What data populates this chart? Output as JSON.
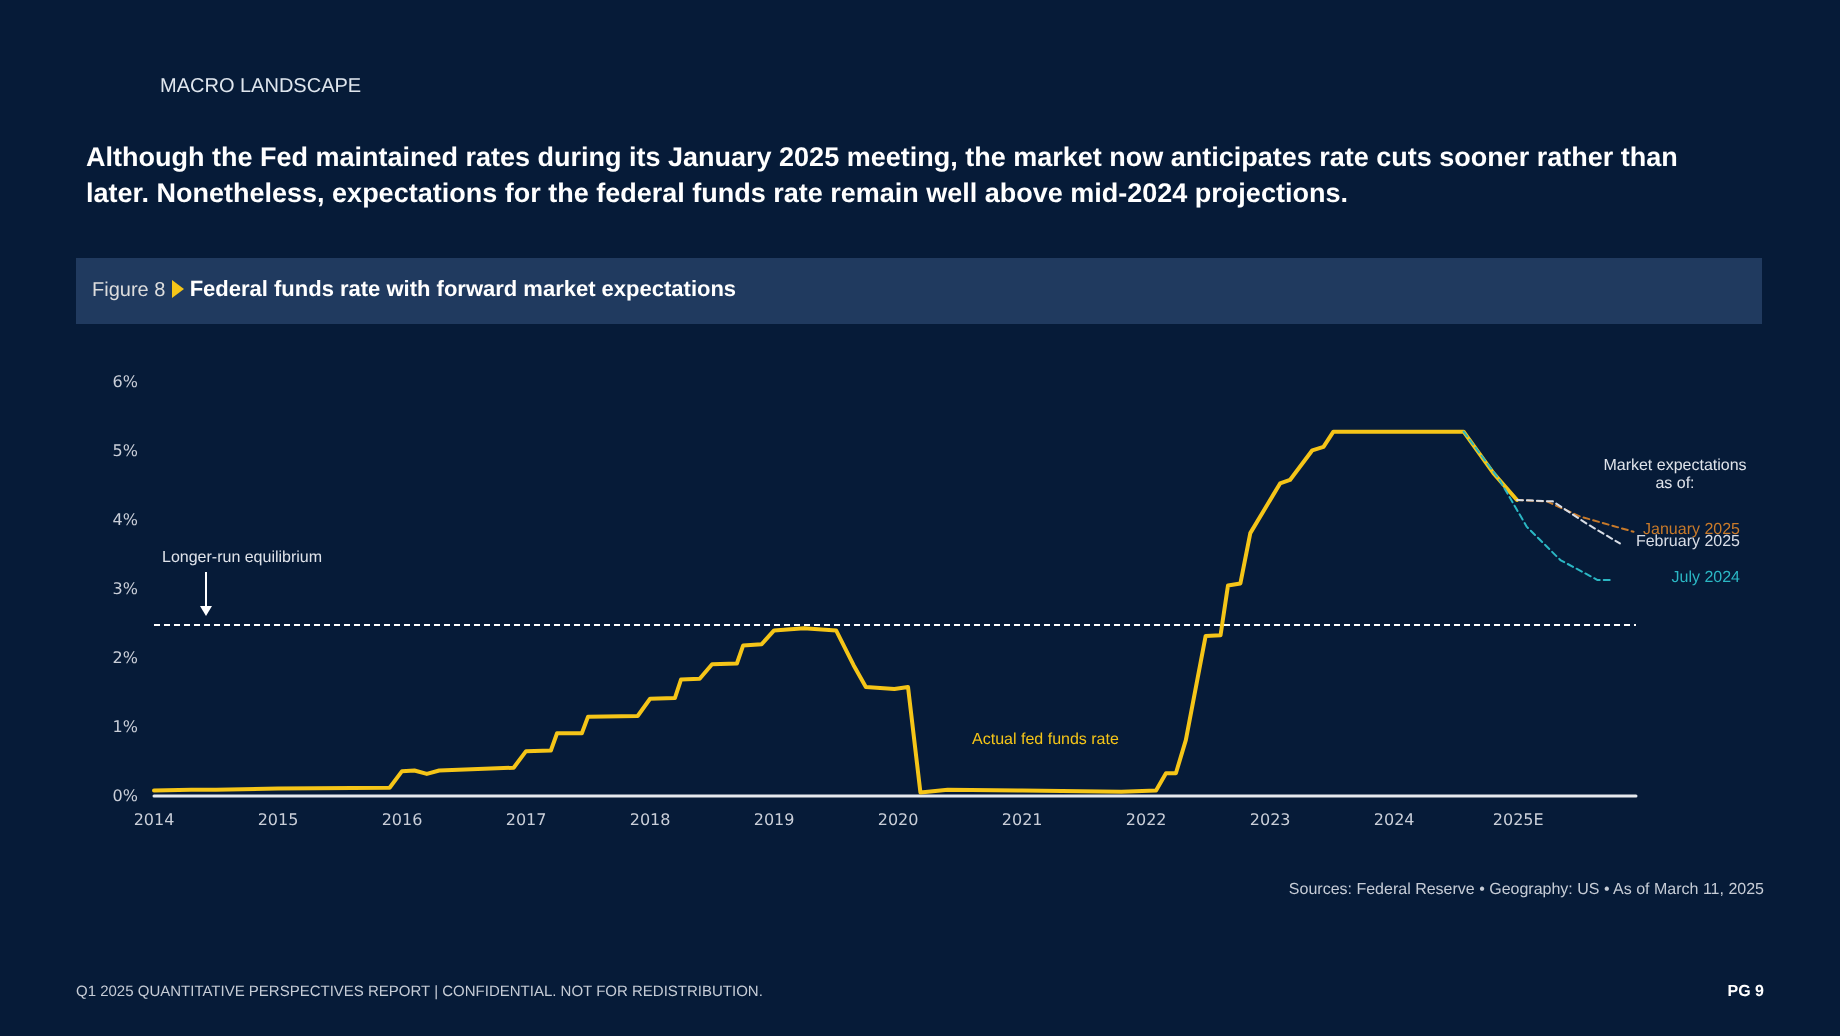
{
  "chart_data": {
    "type": "line",
    "title": "Although the Fed maintained rates during its January 2025 meeting, the market now anticipates rate cuts sooner rather than later. Nonetheless, expectations for the federal funds rate remain well above mid-2024 projections.",
    "subtitle": "Federal funds rate with forward market expectations",
    "legend_title": "Market expectations as of:",
    "annotations": [
      "MACRO LANDSCAPE",
      "Figure 8",
      "Sources: Federal Reserve • Geography: US • As of March 11, 2025",
      "Q1 2025 QUANTITATIVE PERSPECTIVES REPORT | CONFIDENTIAL. NOT FOR REDISTRIBUTION.",
      "PG 9"
    ],
    "xlim": [
      2014,
      2025.95
    ],
    "xticks": [
      2014,
      2015,
      2016,
      2017,
      2018,
      2019,
      2020,
      2021,
      2022,
      2023,
      2024,
      {
        "value": 2025,
        "label": "2025E"
      }
    ],
    "ylim": [
      0,
      6
    ],
    "yticks": [
      {
        "value": 0,
        "label": "0%"
      },
      {
        "value": 1,
        "label": "1%"
      },
      {
        "value": 2,
        "label": "2%"
      },
      {
        "value": 3,
        "label": "3%"
      },
      {
        "value": 4,
        "label": "4%"
      },
      {
        "value": 5,
        "label": "5%"
      },
      {
        "value": 6,
        "label": "6%"
      }
    ],
    "grid": false,
    "legend": false,
    "marker": "none",
    "ref_lines": [
      {
        "axis": "y",
        "value": 2.5,
        "label": "Longer-run equilibrium",
        "color": "#ffffff",
        "line_style": "dashed"
      }
    ],
    "series": [
      {
        "name": "Actual fed funds rate",
        "color": "#f5c518",
        "line_style": "solid",
        "x": [
          2014.0,
          2014.3,
          2014.5,
          2015.0,
          2015.9,
          2016.0,
          2016.1,
          2016.2,
          2016.3,
          2016.9,
          2017.0,
          2017.2,
          2017.25,
          2017.45,
          2017.5,
          2017.9,
          2018.0,
          2018.2,
          2018.25,
          2018.4,
          2018.5,
          2018.7,
          2018.75,
          2018.9,
          2019.0,
          2019.24,
          2019.5,
          2019.64,
          2019.74,
          2019.97,
          2020.08,
          2020.18,
          2020.4,
          2021.0,
          2021.8,
          2022.08,
          2022.16,
          2022.24,
          2022.32,
          2022.48,
          2022.6,
          2022.66,
          2022.76,
          2022.84,
          2023.08,
          2023.16,
          2023.34,
          2023.43,
          2023.51,
          2024.56,
          2024.8,
          2024.99
        ],
        "values": [
          0.08,
          0.09,
          0.09,
          0.11,
          0.12,
          0.36,
          0.37,
          0.32,
          0.37,
          0.41,
          0.65,
          0.66,
          0.91,
          0.91,
          1.15,
          1.16,
          1.41,
          1.42,
          1.69,
          1.7,
          1.91,
          1.92,
          2.18,
          2.2,
          2.4,
          2.43,
          2.4,
          1.9,
          1.58,
          1.55,
          1.58,
          0.05,
          0.09,
          0.08,
          0.06,
          0.08,
          0.33,
          0.33,
          0.81,
          2.32,
          2.33,
          3.05,
          3.08,
          3.81,
          4.53,
          4.58,
          5.01,
          5.06,
          5.28,
          5.28,
          4.68,
          4.29
        ]
      },
      {
        "name": "January 2025",
        "color": "#c87a2a",
        "line_style": "dashed",
        "x": [
          2024.99,
          2025.23,
          2025.5,
          2025.93
        ],
        "values": [
          4.29,
          4.27,
          4.05,
          3.83
        ]
      },
      {
        "name": "February 2025",
        "color": "#d8dde6",
        "line_style": "dashed",
        "x": [
          2024.99,
          2025.28,
          2025.55,
          2025.82
        ],
        "values": [
          4.29,
          4.27,
          3.95,
          3.66
        ]
      },
      {
        "name": "July 2024",
        "color": "#2bb7c4",
        "line_style": "dashed",
        "x": [
          2024.56,
          2024.85,
          2025.07,
          2025.34,
          2025.64,
          2025.77
        ],
        "values": [
          5.28,
          4.58,
          3.9,
          3.42,
          3.13,
          3.13
        ]
      }
    ]
  }
}
